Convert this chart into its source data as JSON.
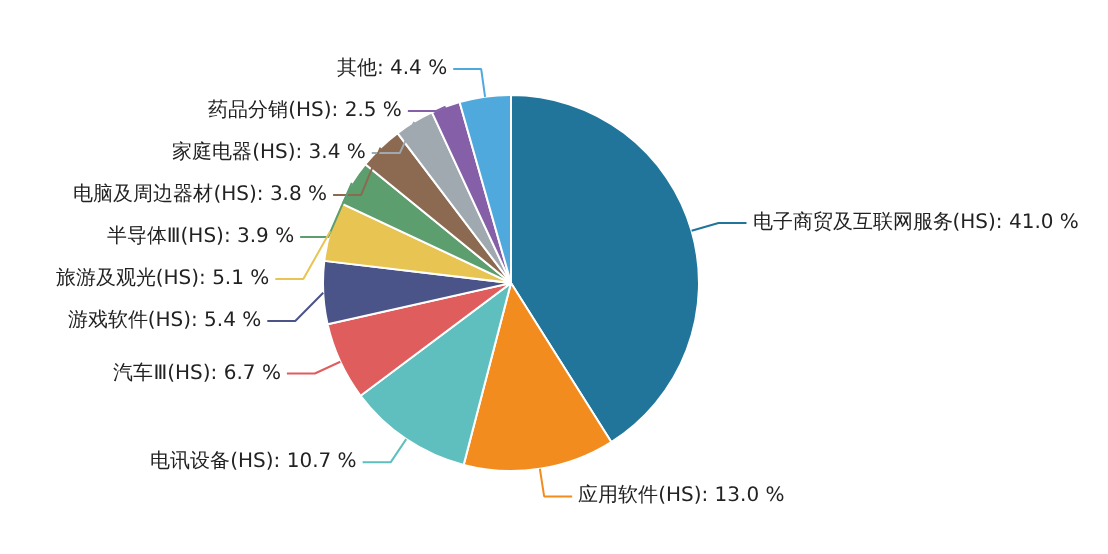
{
  "chart_data": {
    "type": "pie",
    "categories": [
      "电子商贸及互联网服务(HS)",
      "应用软件(HS)",
      "电讯设备(HS)",
      "汽车Ⅲ(HS)",
      "游戏软件(HS)",
      "旅游及观光(HS)",
      "半导体Ⅲ(HS)",
      "电脑及周边器材(HS)",
      "家庭电器(HS)",
      "药品分销(HS)",
      "其他"
    ],
    "values": [
      41.0,
      13.0,
      10.7,
      6.7,
      5.4,
      5.1,
      3.9,
      3.8,
      3.4,
      2.5,
      4.4
    ],
    "value_labels": [
      "41.0 %",
      "13.0 %",
      "10.7 %",
      "6.7 %",
      "5.4 %",
      "5.1 %",
      "3.9 %",
      "3.8 %",
      "3.4 %",
      "2.5 %",
      "4.4 %"
    ],
    "colors": [
      "#21759b",
      "#f28c1e",
      "#5fbfbf",
      "#e05d5d",
      "#4a5488",
      "#e8c552",
      "#5c9e6e",
      "#8c6a52",
      "#a0a8b0",
      "#8560a8",
      "#4fa9dc"
    ]
  }
}
